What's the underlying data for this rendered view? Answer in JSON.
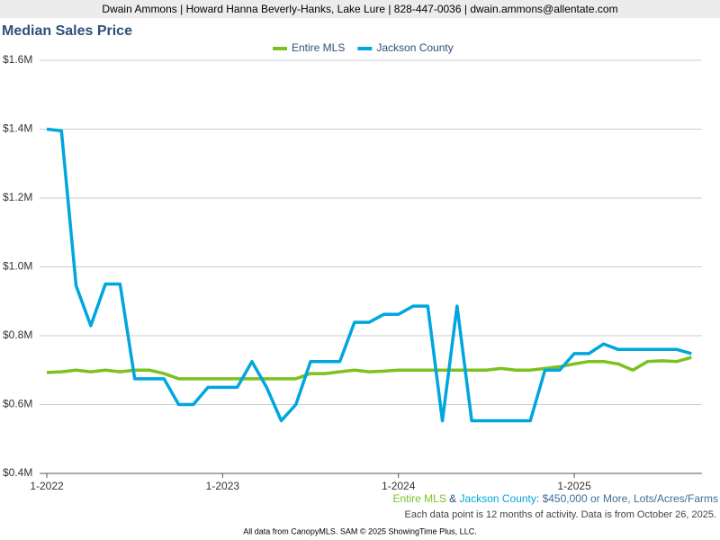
{
  "header": "Dwain Ammons | Howard Hanna Beverly-Hanks, Lake Lure | 828-447-0036 | dwain.ammons@allentate.com",
  "chart_data": {
    "type": "line",
    "title": "Median Sales Price",
    "categories": [
      "1-2022",
      null,
      null,
      null,
      null,
      null,
      null,
      null,
      null,
      null,
      null,
      null,
      "1-2023",
      null,
      null,
      null,
      null,
      null,
      null,
      null,
      null,
      null,
      null,
      null,
      "1-2024",
      null,
      null,
      null,
      null,
      null,
      null,
      null,
      null,
      null,
      null,
      null,
      "1-2025",
      null,
      null,
      null,
      null,
      null,
      null,
      null,
      null
    ],
    "series": [
      {
        "name": "Entire MLS",
        "color": "#7dc11f",
        "values": [
          693000,
          695000,
          700000,
          695000,
          700000,
          695000,
          700000,
          700000,
          690000,
          675000,
          675000,
          675000,
          675000,
          675000,
          675000,
          675000,
          675000,
          675000,
          690000,
          690000,
          695000,
          700000,
          695000,
          697000,
          700000,
          700000,
          700000,
          700000,
          700000,
          700000,
          700000,
          705000,
          700000,
          700000,
          705000,
          710000,
          718000,
          725000,
          725000,
          718000,
          700000,
          725000,
          727000,
          725000,
          737000
        ]
      },
      {
        "name": "Jackson County",
        "color": "#00a6de",
        "values": [
          1400000,
          1395000,
          945000,
          829000,
          950000,
          950000,
          675000,
          675000,
          675000,
          600000,
          600000,
          650000,
          650000,
          650000,
          725000,
          650000,
          553000,
          600000,
          725000,
          725000,
          725000,
          839000,
          839000,
          862000,
          862000,
          886000,
          886000,
          553000,
          886000,
          553000,
          553000,
          553000,
          553000,
          553000,
          700000,
          700000,
          748000,
          748000,
          776000,
          760000,
          760000,
          760000,
          760000,
          760000,
          748000
        ]
      }
    ],
    "ylim": [
      400000,
      1600000
    ],
    "yticks": [
      {
        "value": 400000,
        "label": "$0.4M"
      },
      {
        "value": 600000,
        "label": "$0.6M"
      },
      {
        "value": 800000,
        "label": "$0.8M"
      },
      {
        "value": 1000000,
        "label": "$1.0M"
      },
      {
        "value": 1200000,
        "label": "$1.2M"
      },
      {
        "value": 1400000,
        "label": "$1.4M"
      },
      {
        "value": 1600000,
        "label": "$1.6M"
      }
    ],
    "grid": true,
    "legend": "top"
  },
  "footer": {
    "joiner": " & ",
    "criteria": ": $450,000 or More, Lots/Acres/Farms",
    "note": "Each data point is 12 months of activity. Data is from October 26, 2025.",
    "credit": "All data from CanopyMLS. SAM © 2025 ShowingTime Plus, LLC."
  }
}
